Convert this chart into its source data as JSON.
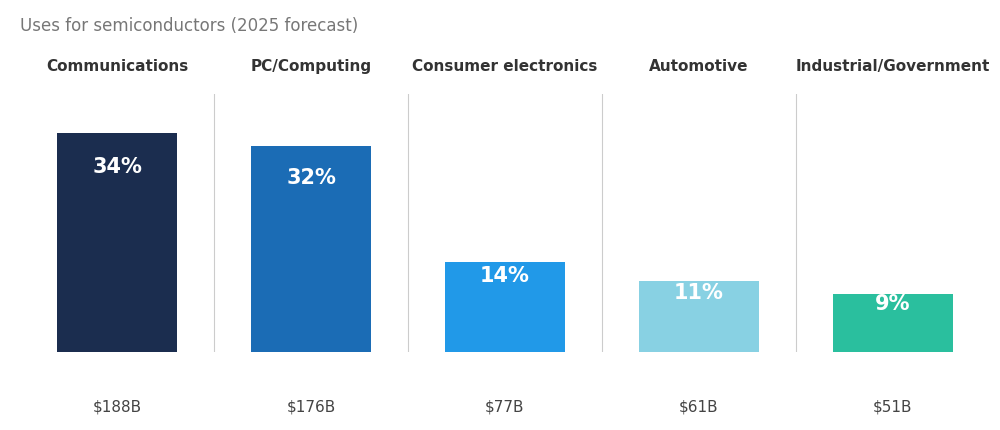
{
  "title": "Uses for semiconductors (2025 forecast)",
  "categories": [
    "Communications",
    "PC/Computing",
    "Consumer electronics",
    "Automotive",
    "Industrial/Government"
  ],
  "values": [
    34,
    32,
    14,
    11,
    9
  ],
  "dollar_labels": [
    "$188B",
    "$176B",
    "$77B",
    "$61B",
    "$51B"
  ],
  "pct_labels": [
    "34%",
    "32%",
    "14%",
    "11%",
    "9%"
  ],
  "bar_colors": [
    "#1b2d4f",
    "#1b6cb5",
    "#2199e8",
    "#88d1e3",
    "#2abf9e"
  ],
  "background_color": "#ffffff",
  "title_color": "#777777",
  "title_fontsize": 12,
  "category_fontsize": 11,
  "pct_fontsize": 15,
  "dollar_fontsize": 11,
  "bar_width": 0.62,
  "ylim": [
    0,
    40
  ],
  "divider_color": "#cccccc",
  "fig_width": 10.0,
  "fig_height": 4.31
}
